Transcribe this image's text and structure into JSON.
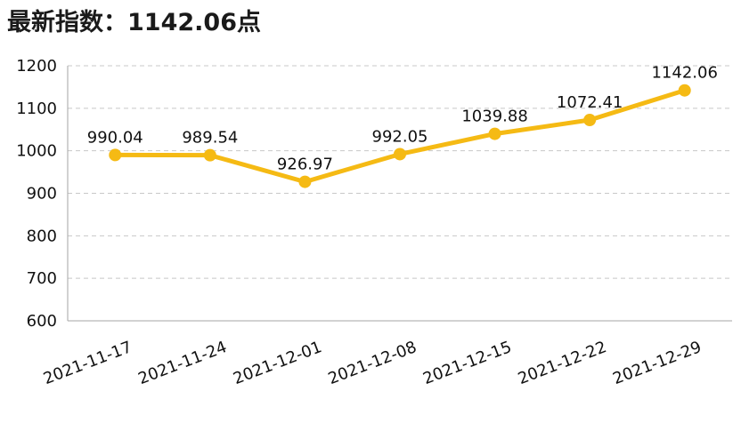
{
  "header": {
    "label": "最新指数：",
    "value": "1142.06",
    "suffix": "点"
  },
  "chart_data": {
    "type": "line",
    "title": "",
    "xlabel": "",
    "ylabel": "",
    "categories": [
      "2021-11-17",
      "2021-11-24",
      "2021-12-01",
      "2021-12-08",
      "2021-12-15",
      "2021-12-22",
      "2021-12-29"
    ],
    "series": [
      {
        "values": [
          990.04,
          989.54,
          926.97,
          992.05,
          1039.88,
          1072.41,
          1142.06
        ],
        "labels": [
          "990.04",
          "989.54",
          "926.97",
          "992.05",
          "1039.88",
          "1072.41",
          "1142.06"
        ],
        "color": "#F5BA14"
      }
    ],
    "ylim": [
      600,
      1200
    ],
    "yticks": [
      600,
      700,
      800,
      900,
      1000,
      1100,
      1200
    ],
    "grid": true,
    "legend": "none"
  }
}
